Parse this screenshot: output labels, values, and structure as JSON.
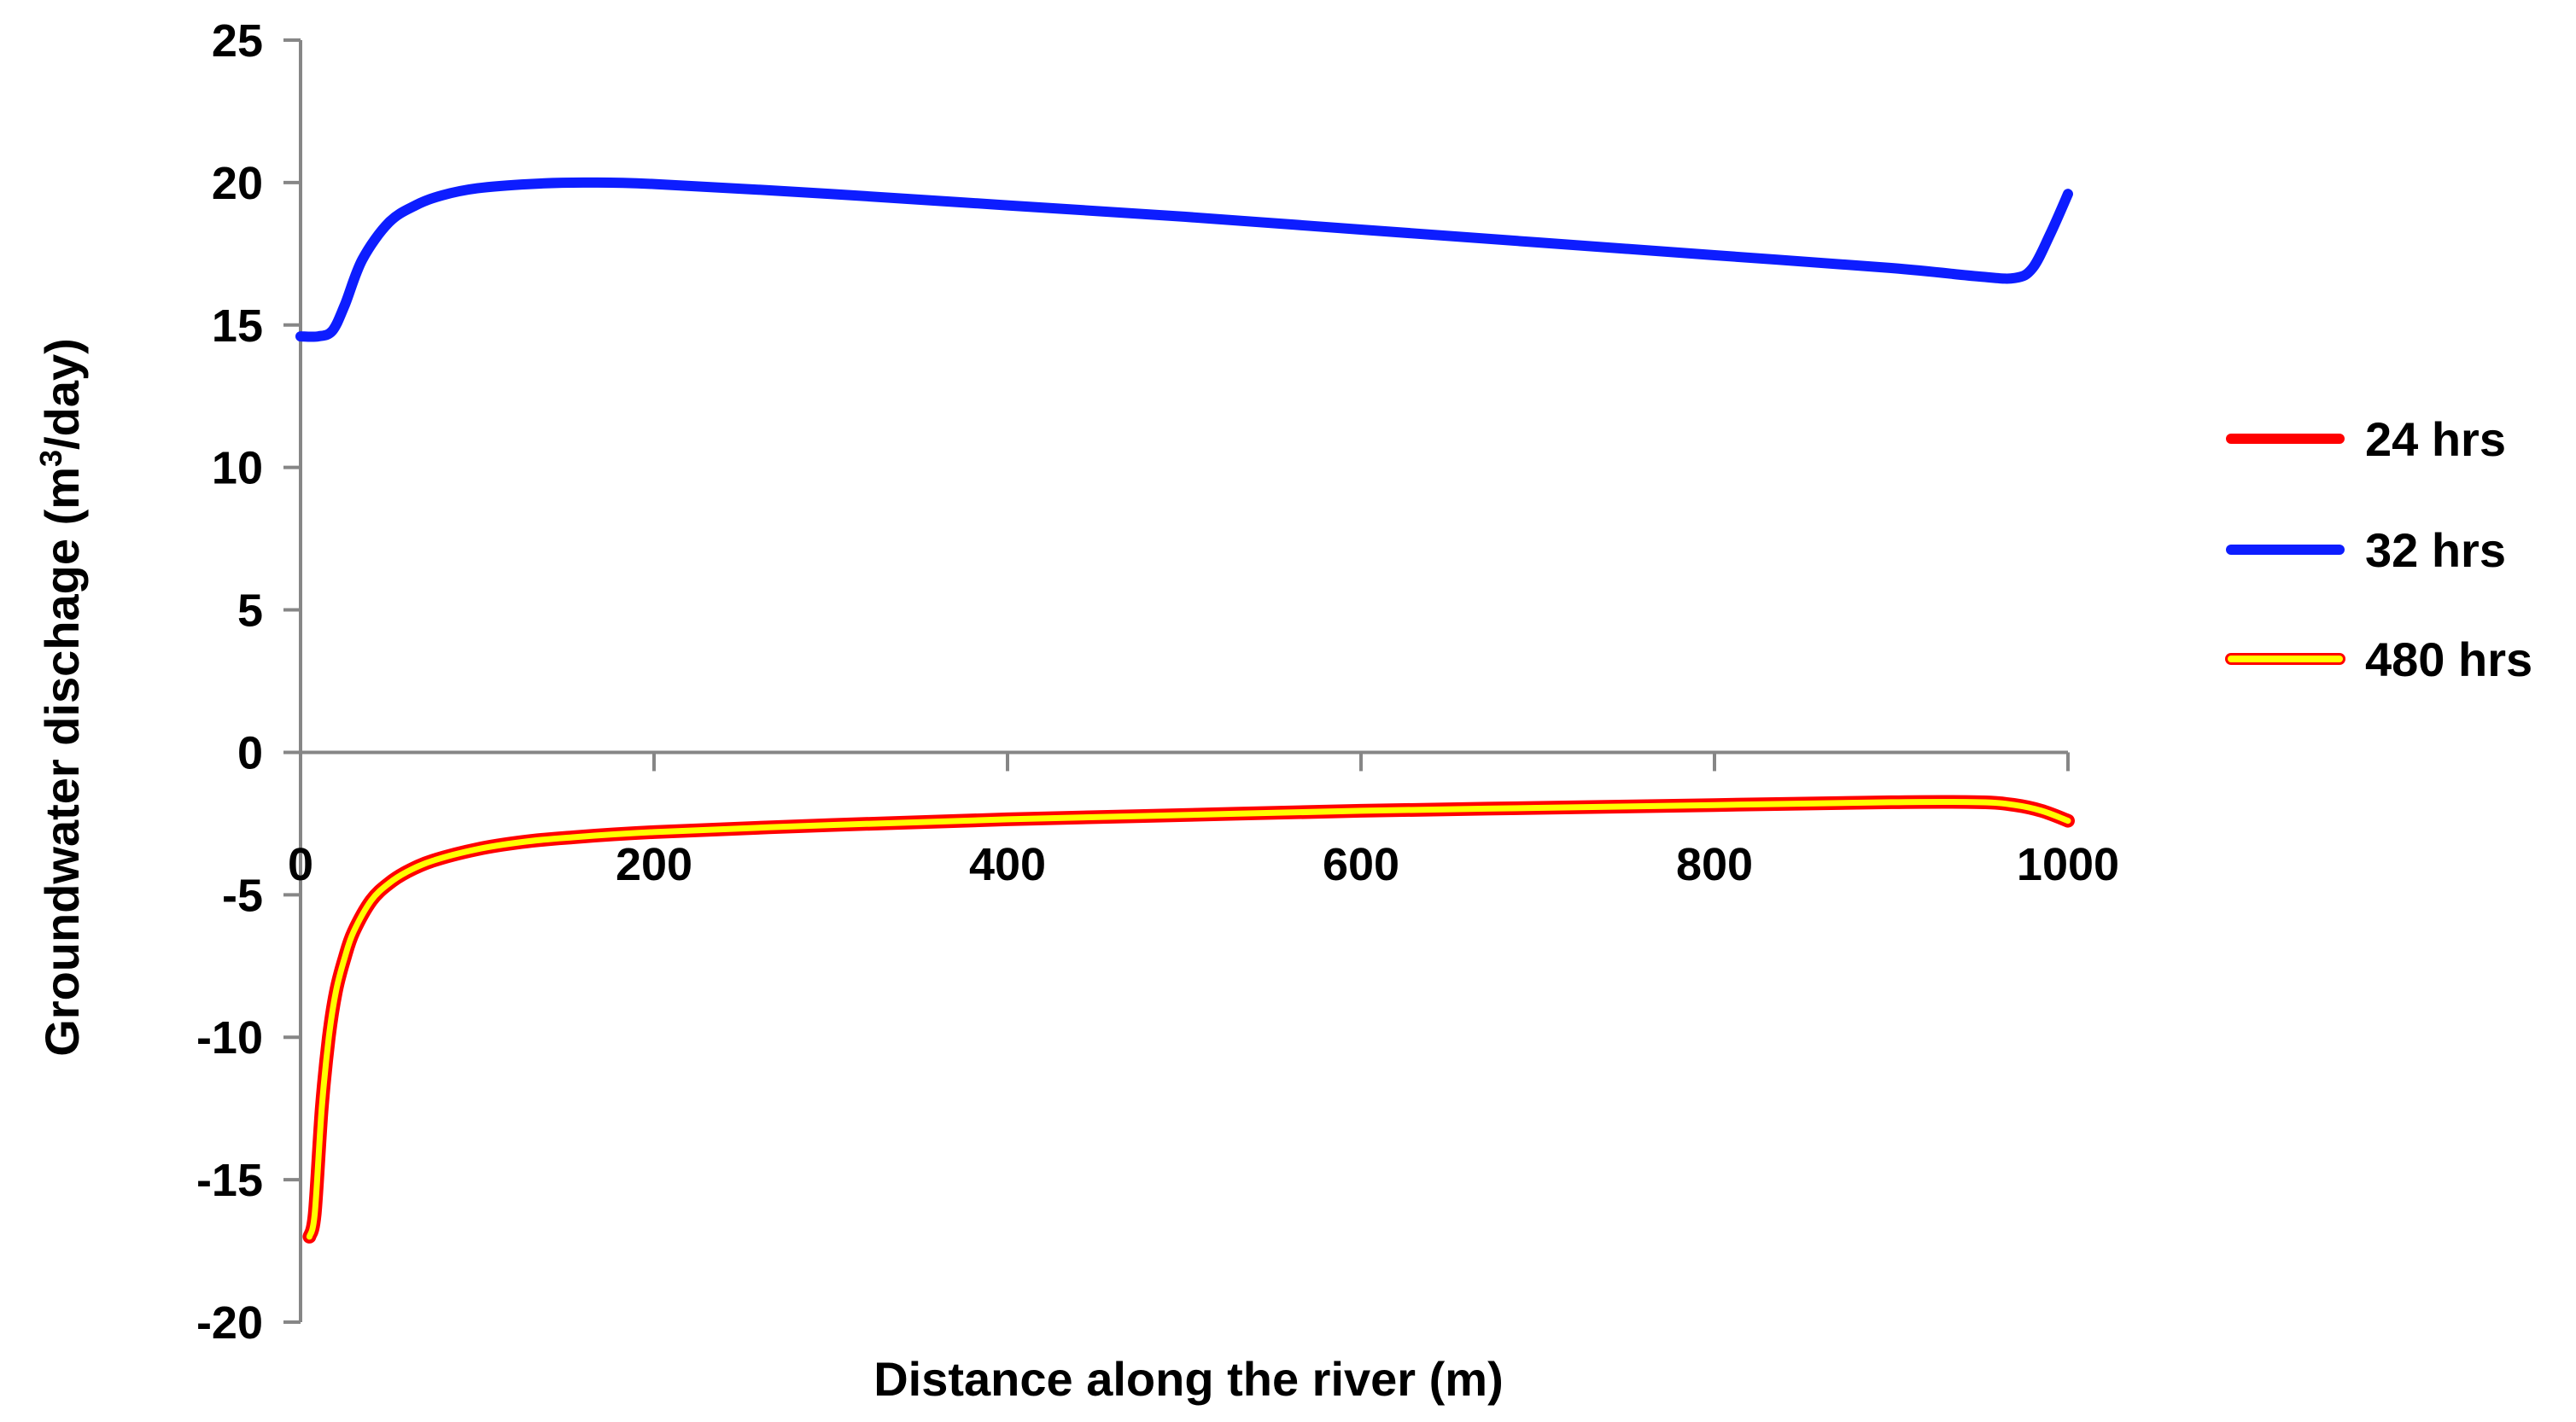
{
  "chart_data": {
    "type": "line",
    "title": "",
    "xlabel": "Distance along the river (m)",
    "ylabel_main": "Groundwater dischage (m",
    "ylabel_sup": "3",
    "ylabel_tail": "/day)",
    "xlim": [
      0,
      1000
    ],
    "ylim": [
      -20,
      25
    ],
    "x_ticks": [
      0,
      200,
      400,
      600,
      800,
      1000
    ],
    "x_tick_labels": [
      "0",
      "200",
      "400",
      "600",
      "800",
      "1000"
    ],
    "y_ticks": [
      25,
      20,
      15,
      10,
      5,
      0,
      -5,
      -10,
      -15,
      -20
    ],
    "y_tick_labels": [
      "25",
      "20",
      "15",
      "10",
      "5",
      "0",
      "-5",
      "-10",
      "-15",
      "-20"
    ],
    "grid": false,
    "legend_position": "right",
    "series": [
      {
        "name": "24 hrs",
        "color": "#ff0000",
        "x": [
          5,
          8,
          12,
          16,
          20,
          25,
          30,
          40,
          50,
          60,
          75,
          100,
          125,
          150,
          200,
          300,
          400,
          500,
          600,
          700,
          800,
          900,
          950,
          970,
          985,
          1000
        ],
        "y": [
          -17.0,
          -16.2,
          -12.5,
          -10.0,
          -8.4,
          -7.2,
          -6.3,
          -5.2,
          -4.6,
          -4.2,
          -3.8,
          -3.4,
          -3.15,
          -3.0,
          -2.8,
          -2.55,
          -2.35,
          -2.2,
          -2.05,
          -1.95,
          -1.85,
          -1.75,
          -1.75,
          -1.85,
          -2.05,
          -2.4
        ]
      },
      {
        "name": "32 hrs",
        "color": "#0d1dff",
        "x": [
          0,
          10,
          18,
          25,
          35,
          50,
          65,
          80,
          100,
          130,
          160,
          200,
          300,
          400,
          500,
          600,
          700,
          800,
          900,
          950,
          970,
          980,
          990,
          1000
        ],
        "y": [
          14.6,
          14.6,
          14.8,
          15.7,
          17.3,
          18.6,
          19.2,
          19.55,
          19.8,
          19.95,
          20.0,
          19.95,
          19.6,
          19.2,
          18.8,
          18.35,
          17.9,
          17.45,
          17.0,
          16.7,
          16.65,
          17.0,
          18.2,
          19.6
        ]
      },
      {
        "name": "480 hrs",
        "color": "#ffff00",
        "x": [
          5,
          8,
          12,
          16,
          20,
          25,
          30,
          40,
          50,
          60,
          75,
          100,
          125,
          150,
          200,
          300,
          400,
          500,
          600,
          700,
          800,
          900,
          950,
          970,
          985,
          1000
        ],
        "y": [
          -17.0,
          -16.2,
          -12.5,
          -10.0,
          -8.4,
          -7.2,
          -6.3,
          -5.2,
          -4.6,
          -4.2,
          -3.8,
          -3.4,
          -3.15,
          -3.0,
          -2.8,
          -2.55,
          -2.35,
          -2.2,
          -2.05,
          -1.95,
          -1.85,
          -1.75,
          -1.75,
          -1.85,
          -2.05,
          -2.4
        ]
      }
    ]
  }
}
